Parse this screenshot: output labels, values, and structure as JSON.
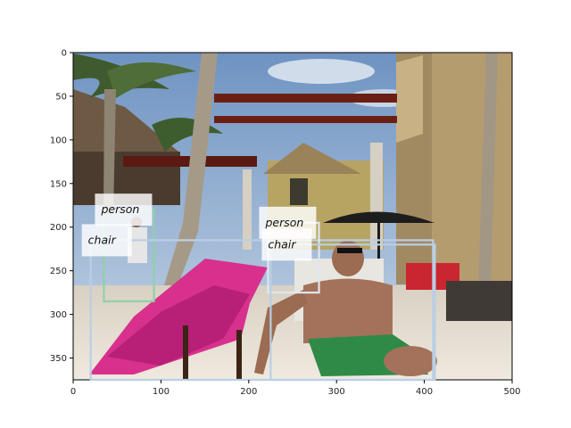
{
  "x_ticks": [
    "0",
    "100",
    "200",
    "300",
    "400",
    "500"
  ],
  "y_ticks": [
    "0",
    "50",
    "100",
    "150",
    "200",
    "250",
    "300",
    "350"
  ],
  "x_range": [
    0,
    500
  ],
  "y_range": [
    375,
    0
  ],
  "image_description_note": "",
  "detections": [
    {
      "label": "person",
      "x0": 35,
      "y0": 180,
      "x1": 92,
      "y1": 285,
      "color": "#8fd1a7"
    },
    {
      "label": "chair",
      "x0": 20,
      "y0": 215,
      "x1": 410,
      "y1": 375,
      "color": "#b9cfe6"
    },
    {
      "label": "person",
      "x0": 222,
      "y0": 195,
      "x1": 280,
      "y1": 275,
      "color": "#dfe7ee"
    },
    {
      "label": "chair",
      "x0": 225,
      "y0": 220,
      "x1": 412,
      "y1": 375,
      "color": "#b9cfe6"
    }
  ],
  "label_positions_word": "top-left of each box"
}
